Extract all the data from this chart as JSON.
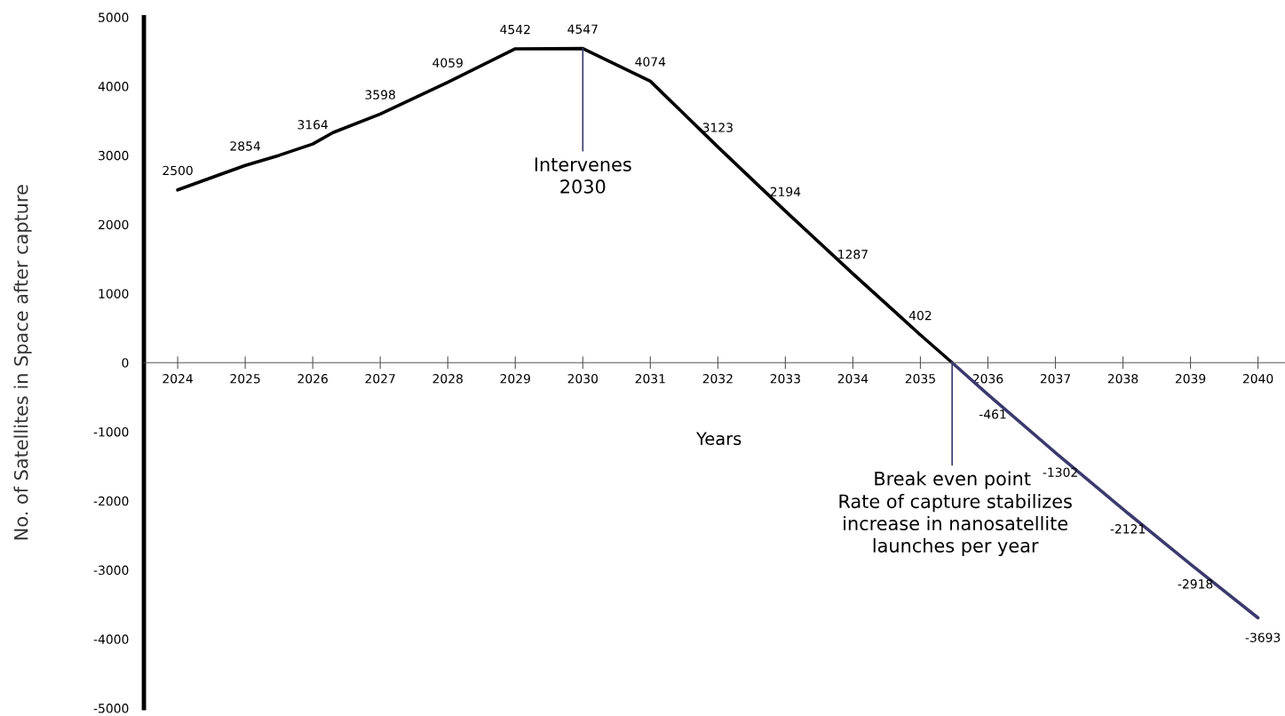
{
  "chart_data": {
    "type": "line",
    "xlabel": "Years",
    "ylabel": "No. of Satellites in Space after capture",
    "xlim": [
      2023.5,
      2040.4
    ],
    "ylim": [
      -5000,
      5000
    ],
    "xticks": [
      2024,
      2025,
      2026,
      2027,
      2028,
      2029,
      2030,
      2031,
      2032,
      2033,
      2034,
      2035,
      2036,
      2037,
      2038,
      2039,
      2040
    ],
    "yticks": [
      -5000,
      -4000,
      -3000,
      -2000,
      -1000,
      0,
      1000,
      2000,
      3000,
      4000,
      5000
    ],
    "grid": false,
    "legend": false,
    "marker": "none",
    "line_style": "solid",
    "series": [
      {
        "color": "#000000",
        "x": [
          2024,
          2025,
          2025.5,
          2026,
          2026.3,
          2027,
          2028,
          2029,
          2030,
          2031,
          2032,
          2033,
          2034,
          2035,
          2035.47
        ],
        "values": [
          2500,
          2854,
          3000,
          3164,
          3330,
          3598,
          4059,
          4542,
          4547,
          4074,
          3123,
          2194,
          1287,
          402,
          0
        ],
        "value_labels": [
          "2500",
          "2854",
          null,
          "3164",
          null,
          "3598",
          "4059",
          "4542",
          "4547",
          "4074",
          "3123",
          "2194",
          "1287",
          "402",
          null
        ]
      },
      {
        "color": "#3b3a6e",
        "x": [
          2035.47,
          2036,
          2037,
          2038,
          2039,
          2040
        ],
        "values": [
          0,
          -461,
          -1302,
          -2121,
          -2918,
          -3693
        ],
        "value_labels": [
          null,
          "-461",
          "-1302",
          "-2121",
          "-2918",
          "-3693"
        ]
      }
    ],
    "annotations": [
      {
        "text": "Intervenes\n2030",
        "x": 2030,
        "y": 4547
      },
      {
        "text": "Break even point",
        "x": 2035.47,
        "y": 0
      },
      "Rate of capture stabilizes\nincrease in nanosatellite\nlaunches per year"
    ]
  }
}
